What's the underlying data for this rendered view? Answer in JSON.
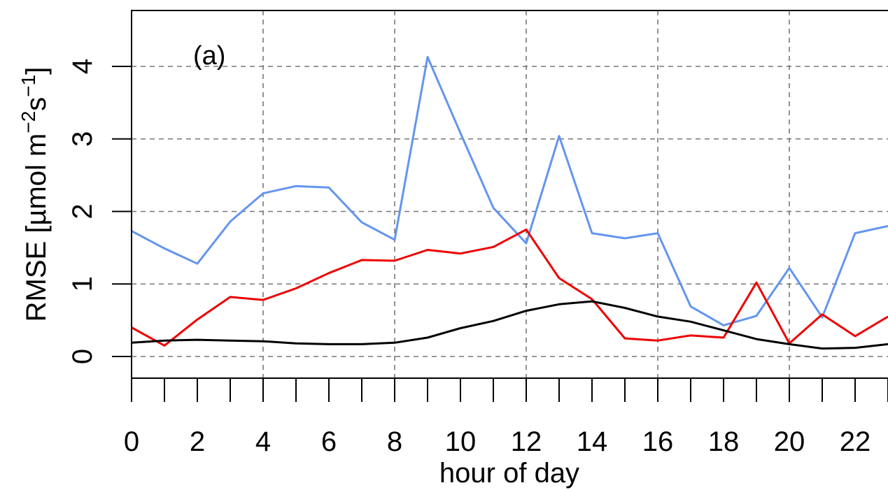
{
  "chart_data": {
    "type": "line",
    "panel_label": "(a)",
    "xlabel": "hour of day",
    "ylabel_main": "RMSE [µmol m",
    "ylabel_sup1": "−2",
    "ylabel_mid": "s",
    "ylabel_sup2": "−1",
    "ylabel_end": "]",
    "xlim": [
      0,
      23
    ],
    "ylim": [
      -0.3,
      4.8
    ],
    "x": [
      0,
      1,
      2,
      3,
      4,
      5,
      6,
      7,
      8,
      9,
      10,
      11,
      12,
      13,
      14,
      15,
      16,
      17,
      18,
      19,
      20,
      21,
      22,
      23
    ],
    "x_ticks": [
      0,
      2,
      4,
      6,
      8,
      10,
      12,
      14,
      16,
      18,
      20,
      22
    ],
    "y_ticks": [
      0,
      1,
      2,
      3,
      4
    ],
    "grid": true,
    "series": [
      {
        "color": "#6495ED",
        "values": [
          1.73,
          1.49,
          1.28,
          1.86,
          2.25,
          2.35,
          2.33,
          1.85,
          1.61,
          4.13,
          3.08,
          2.05,
          1.56,
          3.04,
          1.7,
          1.63,
          1.7,
          0.69,
          0.43,
          0.56,
          1.22,
          0.54,
          1.7,
          1.8
        ]
      },
      {
        "color": "#EE0000",
        "values": [
          0.4,
          0.15,
          0.51,
          0.82,
          0.78,
          0.94,
          1.15,
          1.33,
          1.32,
          1.47,
          1.42,
          1.51,
          1.75,
          1.08,
          0.79,
          0.25,
          0.22,
          0.29,
          0.26,
          1.02,
          0.18,
          0.58,
          0.28,
          0.55
        ]
      },
      {
        "color": "#000000",
        "values": [
          0.19,
          0.22,
          0.23,
          0.22,
          0.21,
          0.18,
          0.17,
          0.17,
          0.19,
          0.26,
          0.39,
          0.49,
          0.63,
          0.72,
          0.76,
          0.67,
          0.55,
          0.48,
          0.36,
          0.24,
          0.17,
          0.11,
          0.12,
          0.17
        ]
      }
    ]
  }
}
